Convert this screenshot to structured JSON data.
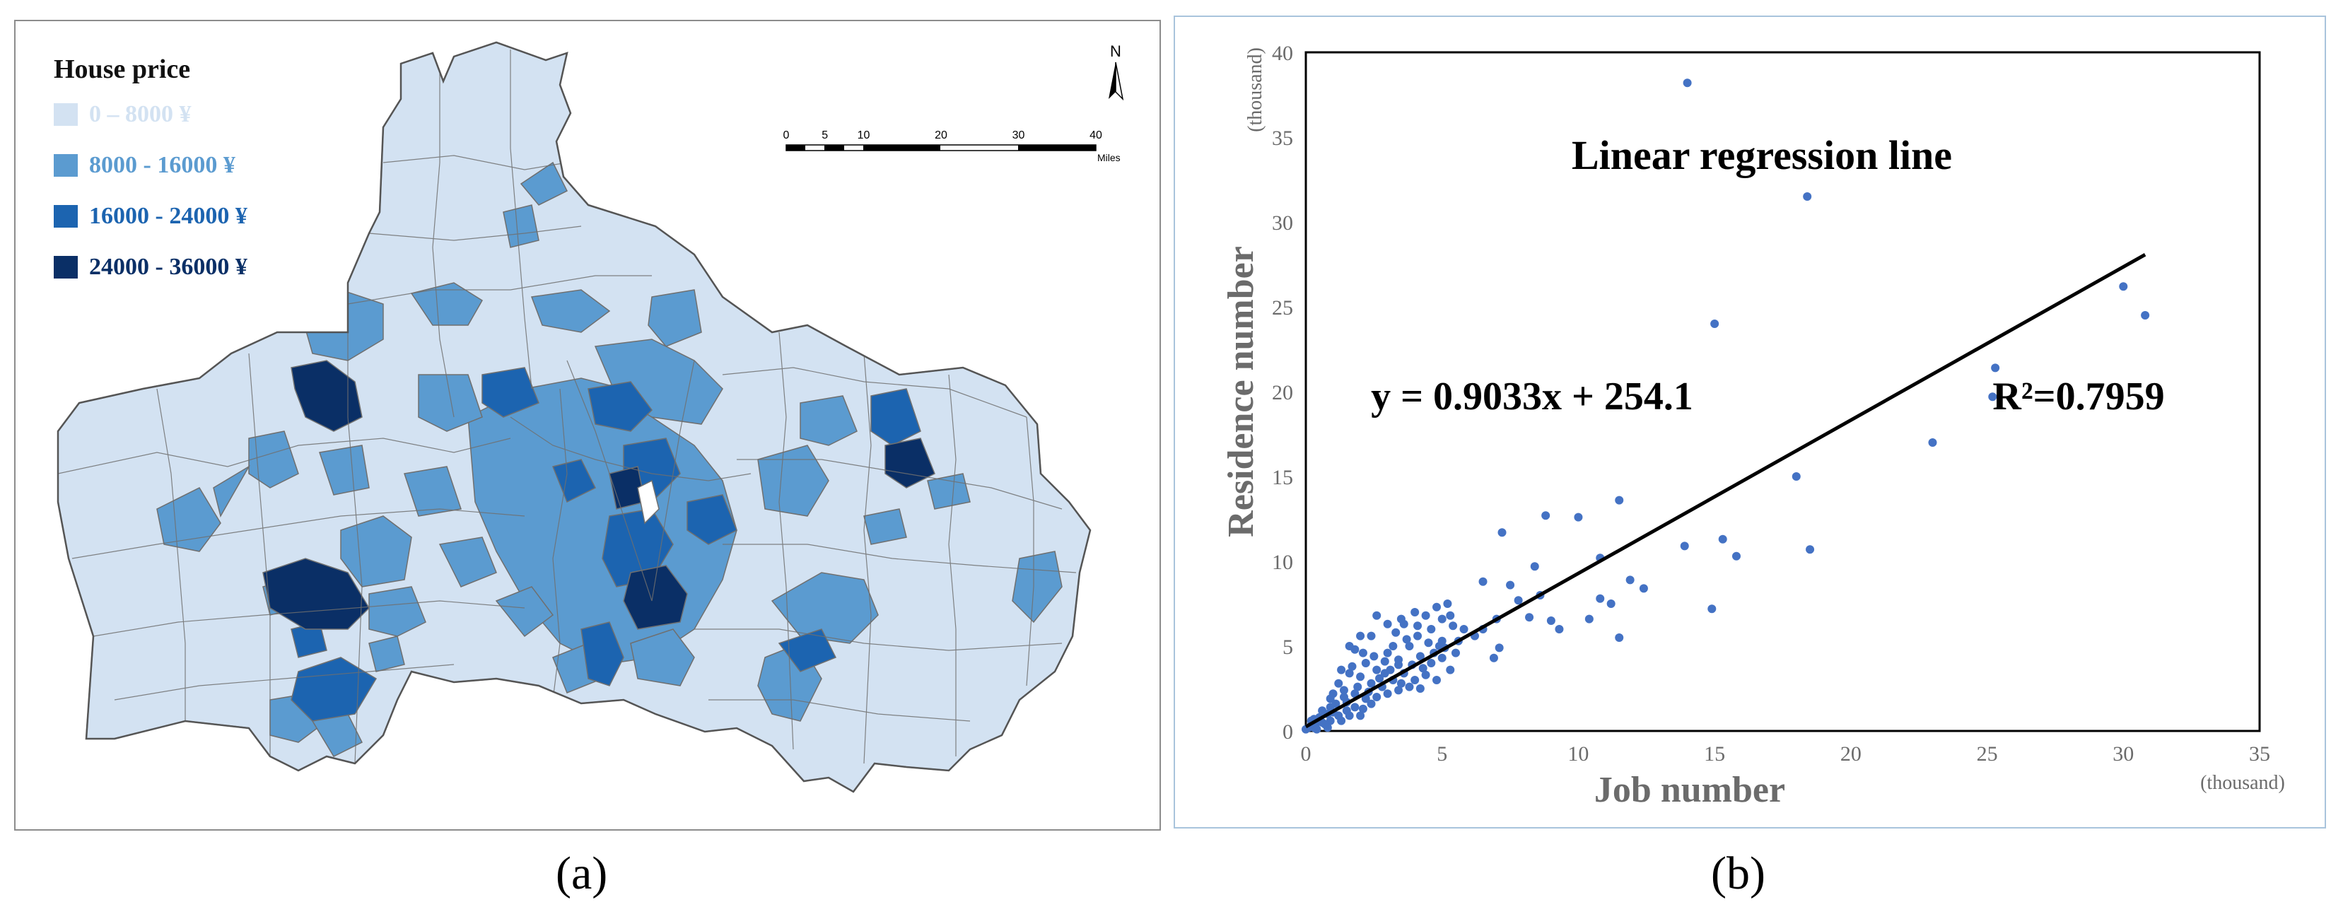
{
  "panels": {
    "a": {
      "caption": "(a)"
    },
    "b": {
      "caption": "(b)"
    }
  },
  "map": {
    "legend": {
      "title": "House price",
      "items": [
        {
          "label": "0 – 8000 ¥",
          "color": "#d3e2f2"
        },
        {
          "label": "8000 - 16000 ¥",
          "color": "#5b9bd0"
        },
        {
          "label": "16000 - 24000 ¥",
          "color": "#1c64b0"
        },
        {
          "label": "24000 - 36000 ¥",
          "color": "#0a2f66"
        }
      ]
    },
    "north_arrow": "N",
    "scale_bar": {
      "ticks": [
        "0",
        "5",
        "10",
        "20",
        "30",
        "40"
      ],
      "unit": "Miles"
    },
    "colors": {
      "light": "#d3e2f2",
      "mid": "#5b9bd0",
      "dark": "#1c64b0",
      "darkest": "#0a2f66",
      "border": "#6f6f6f"
    }
  },
  "chart_data": {
    "type": "scatter",
    "title": "Linear regression line",
    "equation": "y = 0.9033x + 254.1",
    "r_squared": "R²=0.7959",
    "xlabel": "Job number",
    "ylabel": "Residence number",
    "x_unit": "(thousand)",
    "y_unit": "(thousand)",
    "xlim": [
      0,
      35
    ],
    "ylim": [
      0,
      40
    ],
    "x_ticks": [
      0,
      5,
      10,
      15,
      20,
      25,
      30,
      35
    ],
    "y_ticks": [
      0,
      5,
      10,
      15,
      20,
      25,
      30,
      35,
      40
    ],
    "regression": {
      "slope": 0.9033,
      "intercept_thousand": 0.2541,
      "x_range": [
        0,
        30.8
      ]
    },
    "point_color": "#4472c4",
    "points": [
      [
        14.0,
        38.2
      ],
      [
        18.4,
        31.5
      ],
      [
        15.0,
        24.0
      ],
      [
        30.0,
        26.2
      ],
      [
        30.8,
        24.5
      ],
      [
        25.3,
        21.4
      ],
      [
        25.2,
        19.7
      ],
      [
        23.0,
        17.0
      ],
      [
        18.0,
        15.0
      ],
      [
        18.5,
        10.7
      ],
      [
        15.3,
        11.3
      ],
      [
        15.8,
        10.3
      ],
      [
        14.9,
        7.2
      ],
      [
        13.9,
        10.9
      ],
      [
        11.5,
        13.6
      ],
      [
        10.0,
        12.6
      ],
      [
        8.8,
        12.7
      ],
      [
        7.2,
        11.7
      ],
      [
        11.9,
        8.9
      ],
      [
        12.4,
        8.4
      ],
      [
        11.2,
        7.5
      ],
      [
        11.5,
        5.5
      ],
      [
        10.8,
        7.8
      ],
      [
        10.4,
        6.6
      ],
      [
        10.8,
        10.2
      ],
      [
        9.3,
        6.0
      ],
      [
        9.0,
        6.5
      ],
      [
        8.4,
        9.7
      ],
      [
        8.6,
        8.0
      ],
      [
        7.8,
        7.7
      ],
      [
        8.2,
        6.7
      ],
      [
        7.5,
        8.6
      ],
      [
        6.5,
        8.8
      ],
      [
        7.0,
        6.6
      ],
      [
        7.1,
        4.9
      ],
      [
        6.9,
        4.3
      ],
      [
        6.2,
        5.6
      ],
      [
        6.5,
        6.0
      ],
      [
        5.6,
        5.3
      ],
      [
        5.8,
        6.0
      ],
      [
        5.2,
        7.5
      ],
      [
        5.0,
        6.6
      ],
      [
        4.8,
        7.3
      ],
      [
        5.4,
        6.2
      ],
      [
        5.0,
        5.3
      ],
      [
        4.6,
        6.0
      ],
      [
        4.4,
        6.8
      ],
      [
        4.0,
        7.0
      ],
      [
        3.6,
        6.3
      ],
      [
        3.3,
        5.8
      ],
      [
        3.0,
        6.3
      ],
      [
        2.6,
        6.8
      ],
      [
        2.4,
        5.6
      ],
      [
        2.0,
        5.6
      ],
      [
        1.8,
        4.8
      ],
      [
        1.6,
        5.0
      ],
      [
        2.2,
        4.0
      ],
      [
        2.6,
        3.6
      ],
      [
        3.0,
        4.6
      ],
      [
        3.4,
        4.2
      ],
      [
        3.8,
        5.0
      ],
      [
        4.2,
        4.4
      ],
      [
        4.6,
        4.0
      ],
      [
        5.0,
        4.3
      ],
      [
        4.4,
        3.3
      ],
      [
        4.0,
        3.0
      ],
      [
        3.6,
        3.4
      ],
      [
        3.2,
        3.0
      ],
      [
        2.8,
        2.6
      ],
      [
        2.4,
        2.8
      ],
      [
        2.0,
        3.2
      ],
      [
        1.6,
        3.4
      ],
      [
        1.2,
        2.8
      ],
      [
        1.0,
        2.2
      ],
      [
        1.4,
        2.0
      ],
      [
        1.8,
        2.2
      ],
      [
        2.2,
        1.9
      ],
      [
        2.6,
        2.0
      ],
      [
        3.0,
        2.2
      ],
      [
        3.4,
        2.4
      ],
      [
        3.8,
        2.6
      ],
      [
        4.2,
        2.5
      ],
      [
        4.8,
        3.0
      ],
      [
        5.3,
        3.6
      ],
      [
        5.5,
        4.6
      ],
      [
        4.9,
        5.0
      ],
      [
        4.5,
        5.2
      ],
      [
        4.1,
        5.6
      ],
      [
        3.7,
        5.4
      ],
      [
        3.2,
        5.0
      ],
      [
        2.9,
        4.1
      ],
      [
        2.5,
        4.4
      ],
      [
        2.1,
        4.6
      ],
      [
        1.7,
        3.8
      ],
      [
        1.3,
        3.6
      ],
      [
        1.1,
        1.6
      ],
      [
        0.9,
        1.4
      ],
      [
        0.8,
        1.0
      ],
      [
        0.6,
        1.2
      ],
      [
        0.5,
        0.8
      ],
      [
        0.4,
        0.5
      ],
      [
        0.3,
        0.7
      ],
      [
        0.2,
        0.3
      ],
      [
        0.1,
        0.2
      ],
      [
        0.0,
        0.1
      ],
      [
        0.3,
        0.2
      ],
      [
        0.6,
        0.5
      ],
      [
        0.9,
        0.6
      ],
      [
        1.2,
        0.9
      ],
      [
        1.5,
        1.2
      ],
      [
        1.8,
        1.4
      ],
      [
        2.1,
        1.3
      ],
      [
        2.4,
        1.6
      ],
      [
        1.5,
        1.7
      ],
      [
        1.0,
        1.1
      ],
      [
        0.7,
        0.4
      ],
      [
        0.4,
        0.1
      ],
      [
        0.2,
        0.6
      ],
      [
        0.8,
        0.2
      ],
      [
        1.3,
        0.6
      ],
      [
        1.6,
        0.9
      ],
      [
        2.0,
        0.9
      ],
      [
        2.3,
        2.3
      ],
      [
        2.7,
        3.1
      ],
      [
        3.1,
        3.6
      ],
      [
        3.5,
        2.8
      ],
      [
        3.9,
        3.9
      ],
      [
        4.3,
        3.7
      ],
      [
        4.7,
        4.6
      ],
      [
        5.1,
        4.9
      ],
      [
        3.4,
        3.9
      ],
      [
        2.9,
        3.4
      ],
      [
        1.9,
        2.6
      ],
      [
        1.4,
        2.4
      ],
      [
        0.9,
        1.9
      ],
      [
        5.3,
        6.8
      ],
      [
        4.1,
        6.2
      ],
      [
        3.5,
        6.6
      ]
    ]
  }
}
